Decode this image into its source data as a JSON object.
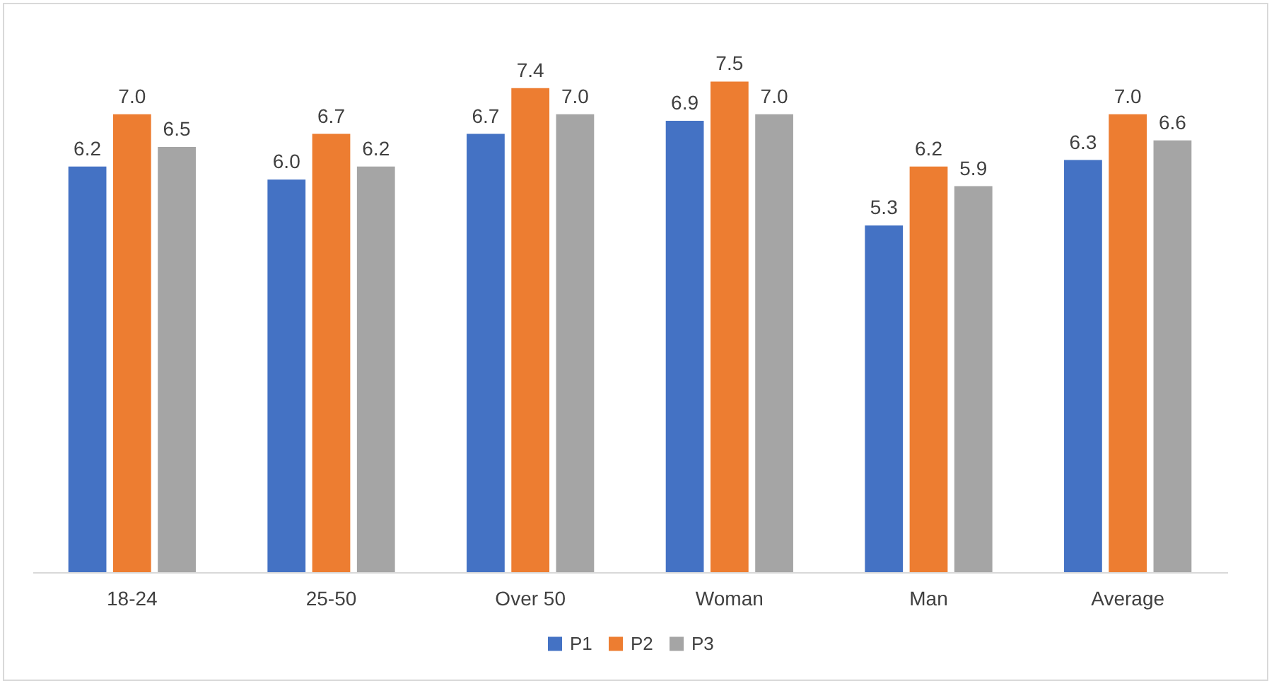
{
  "chart_data": {
    "type": "bar",
    "categories": [
      "18-24",
      "25-50",
      "Over 50",
      "Woman",
      "Man",
      "Average"
    ],
    "series": [
      {
        "name": "P1",
        "color": "#4472c4",
        "values": [
          6.2,
          6.0,
          6.7,
          6.9,
          5.3,
          6.3
        ],
        "value_labels": [
          "6.2",
          "6.0",
          "6.7",
          "6.9",
          "5.3",
          "6.3"
        ]
      },
      {
        "name": "P2",
        "color": "#ed7d31",
        "values": [
          7.0,
          6.7,
          7.4,
          7.5,
          6.2,
          7.0
        ],
        "value_labels": [
          "7.0",
          "6.7",
          "7.4",
          "7.5",
          "6.2",
          "7.0"
        ]
      },
      {
        "name": "P3",
        "color": "#a5a5a5",
        "values": [
          6.5,
          6.2,
          7.0,
          7.0,
          5.9,
          6.6
        ],
        "value_labels": [
          "6.5",
          "6.2",
          "7.0",
          "7.0",
          "5.9",
          "6.6"
        ]
      }
    ],
    "legend": "bottom",
    "grid": false
  }
}
